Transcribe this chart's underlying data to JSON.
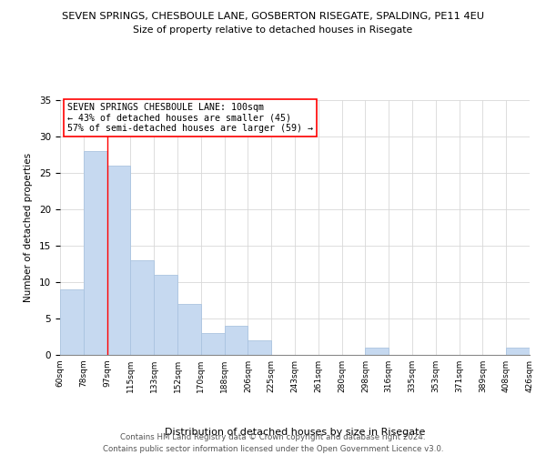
{
  "title_line1": "SEVEN SPRINGS, CHESBOULE LANE, GOSBERTON RISEGATE, SPALDING, PE11 4EU",
  "title_line2": "Size of property relative to detached houses in Risegate",
  "xlabel": "Distribution of detached houses by size in Risegate",
  "ylabel": "Number of detached properties",
  "bin_labels": [
    "60sqm",
    "78sqm",
    "97sqm",
    "115sqm",
    "133sqm",
    "152sqm",
    "170sqm",
    "188sqm",
    "206sqm",
    "225sqm",
    "243sqm",
    "261sqm",
    "280sqm",
    "298sqm",
    "316sqm",
    "335sqm",
    "353sqm",
    "371sqm",
    "389sqm",
    "408sqm",
    "426sqm"
  ],
  "bar_values": [
    9,
    28,
    26,
    13,
    11,
    7,
    3,
    4,
    2,
    0,
    0,
    0,
    0,
    1,
    0,
    0,
    0,
    0,
    0,
    1,
    0
  ],
  "bar_color": "#c6d9f0",
  "bar_edge_color": "#aac4e0",
  "red_line_index": 2,
  "ylim": [
    0,
    35
  ],
  "yticks": [
    0,
    5,
    10,
    15,
    20,
    25,
    30,
    35
  ],
  "annotation_line1": "SEVEN SPRINGS CHESBOULE LANE: 100sqm",
  "annotation_line2": "← 43% of detached houses are smaller (45)",
  "annotation_line3": "57% of semi-detached houses are larger (59) →",
  "footnote_line1": "Contains HM Land Registry data © Crown copyright and database right 2024.",
  "footnote_line2": "Contains public sector information licensed under the Open Government Licence v3.0.",
  "background_color": "#ffffff",
  "grid_color": "#d8d8d8"
}
